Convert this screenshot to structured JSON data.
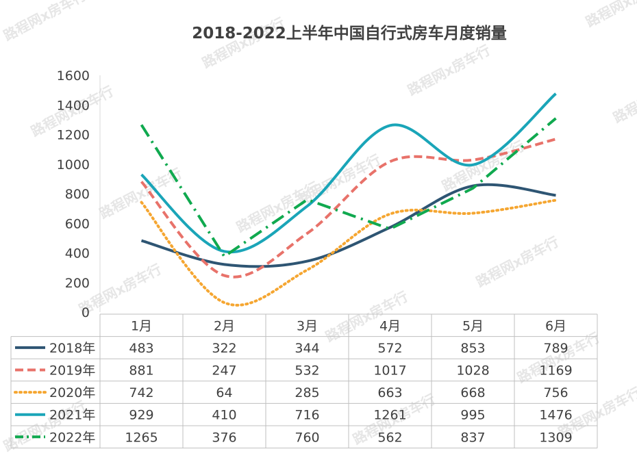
{
  "chart_data": {
    "type": "line",
    "title": "2018-2022上半年中国自行式房车月度销量",
    "categories": [
      "1月",
      "2月",
      "3月",
      "4月",
      "5月",
      "6月"
    ],
    "ylim": [
      0,
      1600
    ],
    "yticks": [
      0,
      200,
      400,
      600,
      800,
      1000,
      1200,
      1400,
      1600
    ],
    "series": [
      {
        "name": "2018年",
        "values": [
          483,
          322,
          344,
          572,
          853,
          789
        ],
        "color": "#2e5573",
        "dash": "solid"
      },
      {
        "name": "2019年",
        "values": [
          881,
          247,
          532,
          1017,
          1028,
          1169
        ],
        "color": "#e8726a",
        "dash": "dash"
      },
      {
        "name": "2020年",
        "values": [
          742,
          64,
          285,
          663,
          668,
          756
        ],
        "color": "#f5a631",
        "dash": "dot"
      },
      {
        "name": "2021年",
        "values": [
          929,
          410,
          716,
          1261,
          995,
          1476
        ],
        "color": "#1aa5b8",
        "dash": "solid"
      },
      {
        "name": "2022年",
        "values": [
          1265,
          376,
          760,
          562,
          837,
          1309
        ],
        "color": "#10a94f",
        "dash": "dashdot"
      }
    ]
  },
  "watermark": "路程网x房车行"
}
